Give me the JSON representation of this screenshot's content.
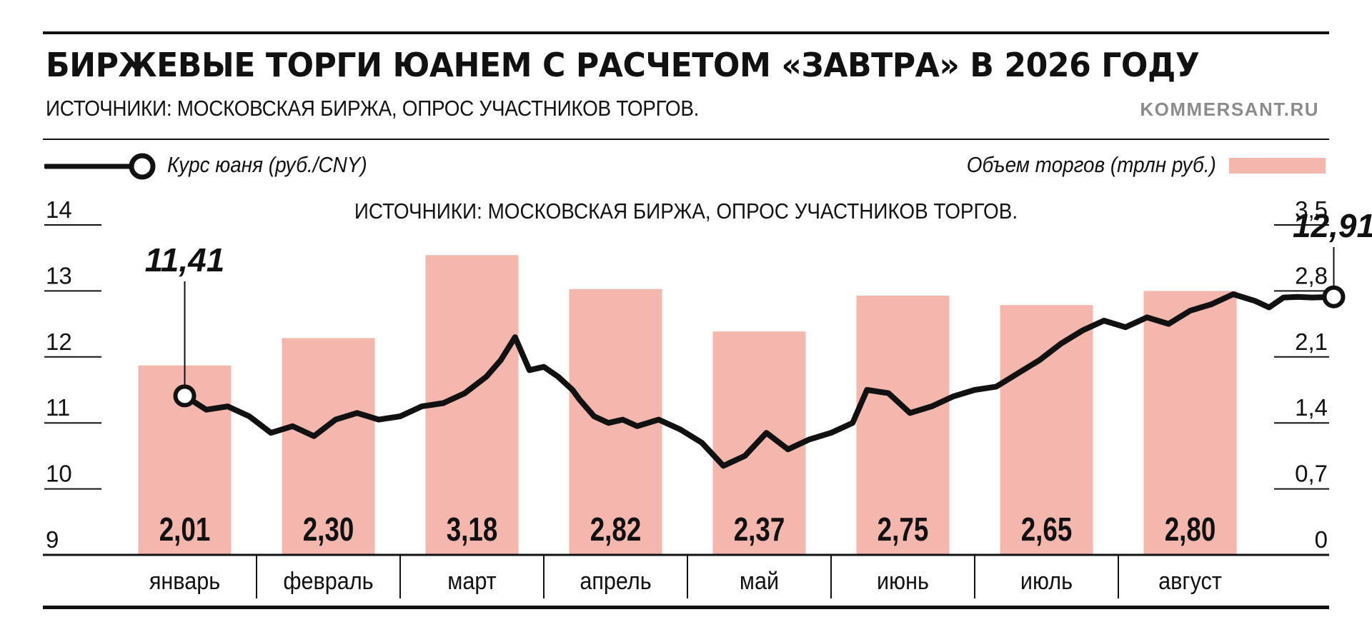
{
  "header": {
    "title": "БИРЖЕВЫЕ ТОРГИ ЮАНЕМ С РАСЧЕТОМ «ЗАВТРА» В 2026 ГОДУ",
    "subtitle": "ИСТОЧНИКИ: МОСКОВСКАЯ БИРЖА, ОПРОС УЧАСТНИКОВ ТОРГОВ.",
    "site": "KOMMERSANT.RU"
  },
  "legend": {
    "line_label": "Курс юаня (руб./CNY)",
    "bar_label": "Объем торгов (трлн руб.)"
  },
  "colors": {
    "bar": "#f3b7ae",
    "line": "#111111",
    "rule": "#111111",
    "site": "#8c8c8c"
  },
  "chart_data": {
    "type": "bar",
    "inner_note": "ИСТОЧНИКИ: МОСКОВСКАЯ БИРЖА, ОПРОС УЧАСТНИКОВ ТОРГОВ.",
    "categories": [
      "январь",
      "февраль",
      "март",
      "апрель",
      "май",
      "июнь",
      "июль",
      "август"
    ],
    "bar_series": {
      "name": "Объем торгов (трлн руб.)",
      "values": [
        2.01,
        2.3,
        3.18,
        2.82,
        2.37,
        2.75,
        2.65,
        2.8
      ],
      "labels": [
        "2,01",
        "2,30",
        "3,18",
        "2,82",
        "2,37",
        "2,75",
        "2,65",
        "2,80"
      ],
      "axis": "right",
      "ylim": [
        0,
        3.5
      ]
    },
    "line_series": {
      "name": "Курс юаня (руб./CNY)",
      "axis": "left",
      "ylim": [
        9,
        14
      ],
      "x": [
        0.0,
        0.15,
        0.3,
        0.45,
        0.6,
        0.75,
        0.9,
        1.05,
        1.2,
        1.35,
        1.5,
        1.65,
        1.8,
        1.95,
        2.1,
        2.2,
        2.3,
        2.4,
        2.5,
        2.6,
        2.7,
        2.75,
        2.85,
        2.95,
        3.05,
        3.15,
        3.3,
        3.45,
        3.6,
        3.75,
        3.9,
        4.05,
        4.2,
        4.35,
        4.5,
        4.65,
        4.75,
        4.9,
        5.05,
        5.2,
        5.35,
        5.5,
        5.65,
        5.8,
        5.95,
        6.1,
        6.25,
        6.4,
        6.55,
        6.7,
        6.85,
        7.0,
        7.15,
        7.3,
        7.45,
        7.55,
        7.65,
        7.75,
        7.85,
        8.0
      ],
      "y": [
        11.41,
        11.2,
        11.25,
        11.1,
        10.85,
        10.95,
        10.8,
        11.05,
        11.15,
        11.05,
        11.1,
        11.25,
        11.3,
        11.45,
        11.7,
        11.95,
        12.3,
        11.8,
        11.85,
        11.7,
        11.5,
        11.35,
        11.1,
        11.0,
        11.05,
        10.95,
        11.05,
        10.9,
        10.7,
        10.35,
        10.5,
        10.85,
        10.6,
        10.75,
        10.85,
        11.0,
        11.5,
        11.45,
        11.15,
        11.25,
        11.4,
        11.5,
        11.55,
        11.75,
        11.95,
        12.2,
        12.4,
        12.55,
        12.45,
        12.6,
        12.5,
        12.7,
        12.8,
        12.95,
        12.85,
        12.75,
        12.9,
        12.91,
        12.9,
        12.91
      ],
      "callouts": [
        {
          "label": "11,41",
          "value": 11.41,
          "x": 0.0
        },
        {
          "label": "12,91",
          "value": 12.91,
          "x": 8.0
        }
      ]
    },
    "y_left_ticks": [
      "14",
      "13",
      "12",
      "11",
      "10",
      "9"
    ],
    "y_right_ticks": [
      "3,5",
      "2,8",
      "2,1",
      "1,4",
      "0,7",
      "0"
    ]
  }
}
